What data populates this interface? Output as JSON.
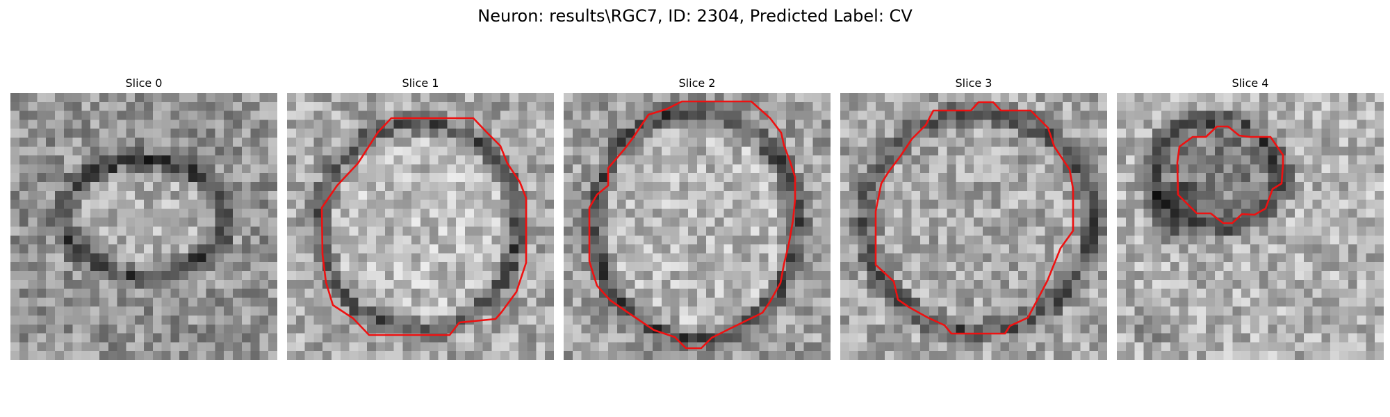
{
  "figure": {
    "suptitle": "Neuron: results\\RGC7, ID: 2304, Predicted Label: CV"
  },
  "colors": {
    "background": "#ffffff",
    "contour": "#ee1111",
    "colormap": "grayscale"
  },
  "image_grid": {
    "cols": 30,
    "rows": 30
  },
  "panels": [
    {
      "title": "Slice 0",
      "has_contour": false
    },
    {
      "title": "Slice 1",
      "has_contour": true
    },
    {
      "title": "Slice 2",
      "has_contour": true
    },
    {
      "title": "Slice 3",
      "has_contour": true
    },
    {
      "title": "Slice 4",
      "has_contour": true
    }
  ]
}
